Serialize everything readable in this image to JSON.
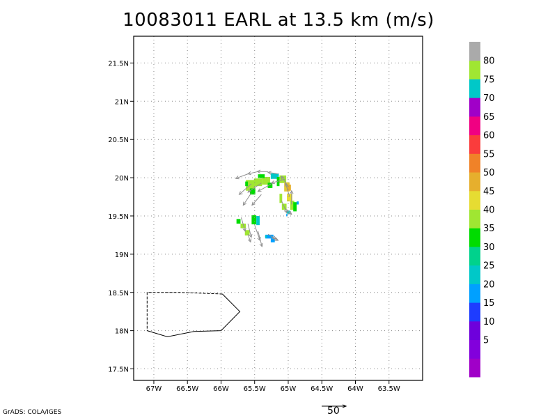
{
  "title": "10083011 EARL at 13.5 km (m/s)",
  "credit": "GrADS: COLA/IGES",
  "scale_label": "50",
  "map": {
    "lon_range": [
      -67.3,
      -63.0
    ],
    "lat_range": [
      17.35,
      21.85
    ],
    "lon_ticks": [
      {
        "value": -67.0,
        "label": "67W"
      },
      {
        "value": -66.5,
        "label": "66.5W"
      },
      {
        "value": -66.0,
        "label": "66W"
      },
      {
        "value": -65.5,
        "label": "65.5W"
      },
      {
        "value": -65.0,
        "label": "65W"
      },
      {
        "value": -64.5,
        "label": "64.5W"
      },
      {
        "value": -64.0,
        "label": "64W"
      },
      {
        "value": -63.5,
        "label": "63.5W"
      }
    ],
    "lat_ticks": [
      {
        "value": 17.5,
        "label": "17.5N"
      },
      {
        "value": 18.0,
        "label": "18N"
      },
      {
        "value": 18.5,
        "label": "18.5N"
      },
      {
        "value": 19.0,
        "label": "19N"
      },
      {
        "value": 19.5,
        "label": "19.5N"
      },
      {
        "value": 20.0,
        "label": "20N"
      },
      {
        "value": 20.5,
        "label": "20.5N"
      },
      {
        "value": 21.0,
        "label": "21N"
      },
      {
        "value": 21.5,
        "label": "21.5N"
      }
    ],
    "coastline_solid": [
      [
        -67.1,
        18.0
      ],
      [
        -66.8,
        17.92
      ],
      [
        -66.4,
        17.99
      ],
      [
        -66.0,
        18.0
      ],
      [
        -65.72,
        18.25
      ],
      [
        -65.98,
        18.48
      ]
    ],
    "coastline_dashed": [
      [
        -65.98,
        18.48
      ],
      [
        -66.6,
        18.5
      ],
      [
        -67.1,
        18.5
      ],
      [
        -67.1,
        18.0
      ]
    ],
    "cells": [
      {
        "lon": -65.56,
        "lat": 19.9,
        "w": 0.14,
        "h": 0.14,
        "color": "#a0e632"
      },
      {
        "lon": -65.45,
        "lat": 19.94,
        "w": 0.12,
        "h": 0.1,
        "color": "#a0e632"
      },
      {
        "lon": -65.33,
        "lat": 19.96,
        "w": 0.12,
        "h": 0.1,
        "color": "#a0e632"
      },
      {
        "lon": -65.2,
        "lat": 20.02,
        "w": 0.12,
        "h": 0.07,
        "color": "#00c8c8"
      },
      {
        "lon": -65.62,
        "lat": 19.92,
        "w": 0.04,
        "h": 0.06,
        "color": "#00dc00"
      },
      {
        "lon": -65.53,
        "lat": 19.82,
        "w": 0.08,
        "h": 0.08,
        "color": "#00dc00"
      },
      {
        "lon": -65.4,
        "lat": 20.02,
        "w": 0.1,
        "h": 0.05,
        "color": "#00dc00"
      },
      {
        "lon": -65.27,
        "lat": 19.9,
        "w": 0.07,
        "h": 0.07,
        "color": "#00dc00"
      },
      {
        "lon": -65.08,
        "lat": 19.98,
        "w": 0.1,
        "h": 0.1,
        "color": "#a0e632"
      },
      {
        "lon": -65.02,
        "lat": 19.88,
        "w": 0.08,
        "h": 0.12,
        "color": "#e1c832"
      },
      {
        "lon": -64.99,
        "lat": 19.87,
        "w": 0.06,
        "h": 0.08,
        "color": "#e6af2d"
      },
      {
        "lon": -64.98,
        "lat": 19.74,
        "w": 0.08,
        "h": 0.1,
        "color": "#e6dc32"
      },
      {
        "lon": -64.94,
        "lat": 19.64,
        "w": 0.06,
        "h": 0.12,
        "color": "#a0e632"
      },
      {
        "lon": -65.11,
        "lat": 19.73,
        "w": 0.04,
        "h": 0.12,
        "color": "#a0e632"
      },
      {
        "lon": -65.06,
        "lat": 19.62,
        "w": 0.07,
        "h": 0.08,
        "color": "#a0e632"
      },
      {
        "lon": -64.9,
        "lat": 19.62,
        "w": 0.05,
        "h": 0.12,
        "color": "#00dc00"
      },
      {
        "lon": -65.15,
        "lat": 19.95,
        "w": 0.04,
        "h": 0.12,
        "color": "#00dc00"
      },
      {
        "lon": -65.0,
        "lat": 19.55,
        "w": 0.05,
        "h": 0.04,
        "color": "#00c8c8"
      },
      {
        "lon": -64.86,
        "lat": 19.67,
        "w": 0.03,
        "h": 0.04,
        "color": "#00a0ff"
      },
      {
        "lon": -65.02,
        "lat": 19.51,
        "w": 0.02,
        "h": 0.03,
        "color": "#00a0ff"
      },
      {
        "lon": -65.74,
        "lat": 19.43,
        "w": 0.06,
        "h": 0.06,
        "color": "#00dc00"
      },
      {
        "lon": -65.67,
        "lat": 19.37,
        "w": 0.08,
        "h": 0.06,
        "color": "#a0e632"
      },
      {
        "lon": -65.61,
        "lat": 19.28,
        "w": 0.07,
        "h": 0.07,
        "color": "#a0e632"
      },
      {
        "lon": -65.51,
        "lat": 19.45,
        "w": 0.07,
        "h": 0.12,
        "color": "#00dc00"
      },
      {
        "lon": -65.45,
        "lat": 19.44,
        "w": 0.05,
        "h": 0.12,
        "color": "#00c8c8"
      },
      {
        "lon": -65.28,
        "lat": 19.23,
        "w": 0.12,
        "h": 0.05,
        "color": "#00a0ff"
      },
      {
        "lon": -65.23,
        "lat": 19.18,
        "w": 0.06,
        "h": 0.05,
        "color": "#00a0ff"
      },
      {
        "lon": -65.33,
        "lat": 19.23,
        "w": 0.03,
        "h": 0.03,
        "color": "#00c8c8"
      }
    ],
    "vectors": [
      {
        "lon": -65.6,
        "lat": 20.05,
        "u": -0.18,
        "v": -0.06
      },
      {
        "lon": -65.45,
        "lat": 20.08,
        "u": -0.15,
        "v": -0.03
      },
      {
        "lon": -65.3,
        "lat": 20.08,
        "u": -0.16,
        "v": 0.0
      },
      {
        "lon": -65.15,
        "lat": 20.05,
        "u": -0.15,
        "v": 0.02
      },
      {
        "lon": -65.05,
        "lat": 19.98,
        "u": -0.2,
        "v": -0.05
      },
      {
        "lon": -65.55,
        "lat": 19.92,
        "u": -0.18,
        "v": -0.14
      },
      {
        "lon": -65.4,
        "lat": 19.93,
        "u": -0.2,
        "v": -0.12
      },
      {
        "lon": -65.25,
        "lat": 19.92,
        "u": -0.2,
        "v": -0.1
      },
      {
        "lon": -65.55,
        "lat": 19.8,
        "u": -0.12,
        "v": -0.16
      },
      {
        "lon": -65.4,
        "lat": 19.78,
        "u": -0.14,
        "v": -0.14
      },
      {
        "lon": -65.0,
        "lat": 19.88,
        "u": -0.1,
        "v": 0.14
      },
      {
        "lon": -64.98,
        "lat": 19.75,
        "u": -0.06,
        "v": 0.18
      },
      {
        "lon": -64.95,
        "lat": 19.65,
        "u": 0.0,
        "v": 0.18
      },
      {
        "lon": -65.1,
        "lat": 19.7,
        "u": 0.08,
        "v": -0.16
      },
      {
        "lon": -65.05,
        "lat": 19.6,
        "u": 0.1,
        "v": -0.08
      },
      {
        "lon": -65.7,
        "lat": 19.48,
        "u": 0.06,
        "v": -0.18
      },
      {
        "lon": -65.6,
        "lat": 19.4,
        "u": 0.05,
        "v": -0.18
      },
      {
        "lon": -65.5,
        "lat": 19.38,
        "u": 0.08,
        "v": -0.2
      },
      {
        "lon": -65.45,
        "lat": 19.3,
        "u": 0.06,
        "v": -0.2
      },
      {
        "lon": -65.6,
        "lat": 19.26,
        "u": 0.04,
        "v": -0.1
      },
      {
        "lon": -65.3,
        "lat": 19.26,
        "u": 0.12,
        "v": -0.06
      },
      {
        "lon": -65.25,
        "lat": 19.22,
        "u": 0.1,
        "v": -0.04
      }
    ]
  },
  "colorbar": [
    {
      "color": "#a000c8",
      "label": ""
    },
    {
      "color": "#8200dc",
      "label": "5"
    },
    {
      "color": "#6e00dc",
      "label": "10"
    },
    {
      "color": "#1e3cff",
      "label": "15"
    },
    {
      "color": "#00a0ff",
      "label": "20"
    },
    {
      "color": "#00c8c8",
      "label": "25"
    },
    {
      "color": "#00d28c",
      "label": "30"
    },
    {
      "color": "#00dc00",
      "label": "35"
    },
    {
      "color": "#a0e632",
      "label": "40"
    },
    {
      "color": "#e6dc32",
      "label": "45"
    },
    {
      "color": "#e6af2d",
      "label": "50"
    },
    {
      "color": "#f08228",
      "label": "55"
    },
    {
      "color": "#fa3c3c",
      "label": "60"
    },
    {
      "color": "#f00082",
      "label": "65"
    },
    {
      "color": "#a000c8",
      "label": "70"
    },
    {
      "color": "#00c8c8",
      "label": "75"
    },
    {
      "color": "#a0e632",
      "label": "80"
    },
    {
      "color": "#aaaaaa",
      "label": ""
    }
  ]
}
